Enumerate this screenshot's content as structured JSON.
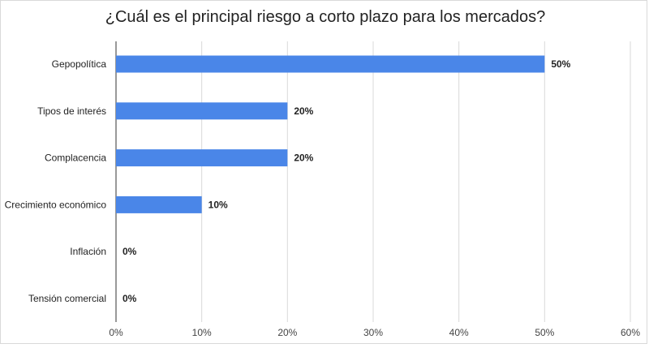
{
  "chart_data": {
    "type": "bar",
    "orientation": "horizontal",
    "title": "¿Cuál es el principal riesgo a corto plazo para los mercados?",
    "categories": [
      "Gepopolítica",
      "Tipos de interés",
      "Complacencia",
      "Crecimiento económico",
      "Inflación",
      "Tensión comercial"
    ],
    "values": [
      50,
      20,
      20,
      10,
      0,
      0
    ],
    "data_labels": [
      "50%",
      "20%",
      "20%",
      "10%",
      "0%",
      "0%"
    ],
    "xlim": [
      0,
      60
    ],
    "x_ticks": [
      0,
      10,
      20,
      30,
      40,
      50,
      60
    ],
    "x_tick_labels": [
      "0%",
      "10%",
      "20%",
      "30%",
      "40%",
      "50%",
      "60%"
    ],
    "grid": "vertical",
    "legend": "none",
    "bar_color": "#4a86e8"
  }
}
